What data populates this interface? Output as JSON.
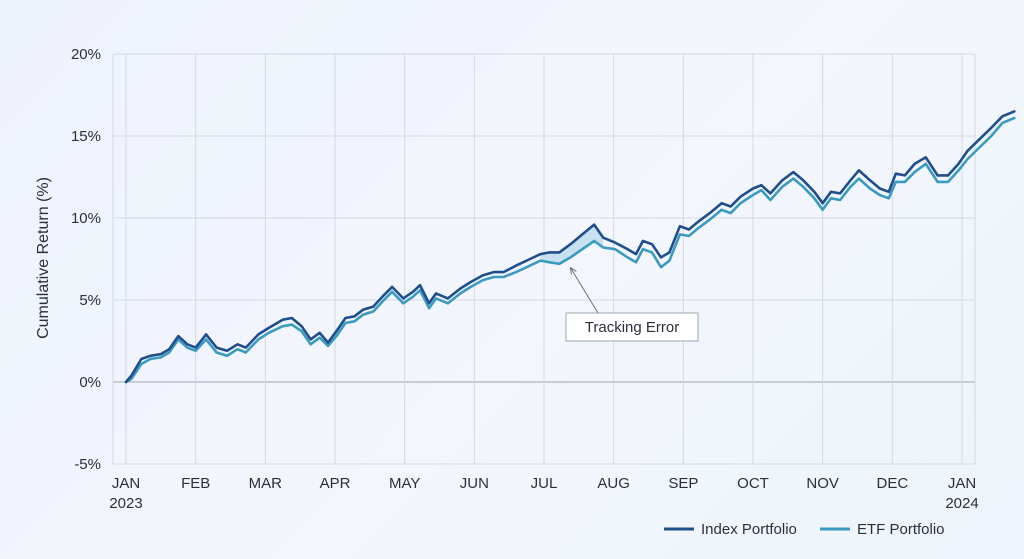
{
  "chart_data": {
    "type": "line",
    "title": "",
    "xlabel": "",
    "ylabel": "Cumulative Return (%)",
    "ylim": [
      -5,
      20
    ],
    "yticks": [
      -5,
      0,
      5,
      10,
      15,
      20
    ],
    "ytick_labels": [
      "-5%",
      "0%",
      "5%",
      "10%",
      "15%",
      "20%"
    ],
    "x_ticks": [
      {
        "label": "JAN",
        "sub": "2023",
        "x": 0
      },
      {
        "label": "FEB",
        "sub": "",
        "x": 1
      },
      {
        "label": "MAR",
        "sub": "",
        "x": 2
      },
      {
        "label": "APR",
        "sub": "",
        "x": 3
      },
      {
        "label": "MAY",
        "sub": "",
        "x": 4
      },
      {
        "label": "JUN",
        "sub": "",
        "x": 5
      },
      {
        "label": "JUL",
        "sub": "",
        "x": 6
      },
      {
        "label": "AUG",
        "sub": "",
        "x": 7
      },
      {
        "label": "SEP",
        "sub": "",
        "x": 8
      },
      {
        "label": "OCT",
        "sub": "",
        "x": 9
      },
      {
        "label": "NOV",
        "sub": "",
        "x": 10
      },
      {
        "label": "DEC",
        "sub": "",
        "x": 11
      },
      {
        "label": "JAN",
        "sub": "2024",
        "x": 12
      }
    ],
    "grid": true,
    "legend_position": "bottom-right",
    "series": [
      {
        "name": "Index Portfolio",
        "color": "#1f4e8c",
        "points": [
          [
            0,
            0
          ],
          [
            0.08,
            0.4
          ],
          [
            0.22,
            1.4
          ],
          [
            0.35,
            1.6
          ],
          [
            0.5,
            1.7
          ],
          [
            0.62,
            2.0
          ],
          [
            0.75,
            2.8
          ],
          [
            0.88,
            2.3
          ],
          [
            1.0,
            2.1
          ],
          [
            1.15,
            2.9
          ],
          [
            1.3,
            2.1
          ],
          [
            1.45,
            1.9
          ],
          [
            1.6,
            2.3
          ],
          [
            1.72,
            2.1
          ],
          [
            1.9,
            2.9
          ],
          [
            2.05,
            3.3
          ],
          [
            2.25,
            3.8
          ],
          [
            2.38,
            3.9
          ],
          [
            2.52,
            3.4
          ],
          [
            2.65,
            2.6
          ],
          [
            2.78,
            3.0
          ],
          [
            2.9,
            2.4
          ],
          [
            3.02,
            3.1
          ],
          [
            3.15,
            3.9
          ],
          [
            3.28,
            4.0
          ],
          [
            3.4,
            4.4
          ],
          [
            3.55,
            4.6
          ],
          [
            3.68,
            5.2
          ],
          [
            3.82,
            5.8
          ],
          [
            3.98,
            5.1
          ],
          [
            4.12,
            5.5
          ],
          [
            4.22,
            5.9
          ],
          [
            4.35,
            4.8
          ],
          [
            4.45,
            5.4
          ],
          [
            4.62,
            5.1
          ],
          [
            4.8,
            5.7
          ],
          [
            4.95,
            6.1
          ],
          [
            5.12,
            6.5
          ],
          [
            5.28,
            6.7
          ],
          [
            5.42,
            6.7
          ],
          [
            5.6,
            7.1
          ],
          [
            5.8,
            7.5
          ],
          [
            5.95,
            7.8
          ],
          [
            6.08,
            7.9
          ],
          [
            6.22,
            7.9
          ],
          [
            6.38,
            8.4
          ],
          [
            6.55,
            9.0
          ],
          [
            6.72,
            9.6
          ],
          [
            6.85,
            8.8
          ],
          [
            7.02,
            8.5
          ],
          [
            7.2,
            8.1
          ],
          [
            7.32,
            7.8
          ],
          [
            7.42,
            8.6
          ],
          [
            7.55,
            8.4
          ],
          [
            7.68,
            7.6
          ],
          [
            7.8,
            7.9
          ],
          [
            7.95,
            9.5
          ],
          [
            8.08,
            9.3
          ],
          [
            8.22,
            9.8
          ],
          [
            8.38,
            10.3
          ],
          [
            8.55,
            10.9
          ],
          [
            8.68,
            10.7
          ],
          [
            8.82,
            11.3
          ],
          [
            9.0,
            11.8
          ],
          [
            9.12,
            12.0
          ],
          [
            9.25,
            11.5
          ],
          [
            9.42,
            12.3
          ],
          [
            9.58,
            12.8
          ],
          [
            9.72,
            12.3
          ],
          [
            9.88,
            11.6
          ],
          [
            10.0,
            10.9
          ],
          [
            10.12,
            11.6
          ],
          [
            10.25,
            11.5
          ],
          [
            10.4,
            12.3
          ],
          [
            10.52,
            12.9
          ],
          [
            10.68,
            12.3
          ],
          [
            10.82,
            11.8
          ],
          [
            10.95,
            11.6
          ],
          [
            11.05,
            12.7
          ],
          [
            11.18,
            12.6
          ],
          [
            11.32,
            13.3
          ],
          [
            11.48,
            13.7
          ],
          [
            11.65,
            12.6
          ],
          [
            11.8,
            12.6
          ],
          [
            11.95,
            13.3
          ],
          [
            12.08,
            14.1
          ],
          [
            12.25,
            14.8
          ],
          [
            12.42,
            15.5
          ],
          [
            12.58,
            16.2
          ],
          [
            12.75,
            16.5
          ]
        ]
      },
      {
        "name": "ETF Portfolio",
        "color": "#3a9bbf",
        "points": [
          [
            0,
            0
          ],
          [
            0.08,
            0.2
          ],
          [
            0.22,
            1.1
          ],
          [
            0.35,
            1.4
          ],
          [
            0.5,
            1.5
          ],
          [
            0.62,
            1.8
          ],
          [
            0.75,
            2.6
          ],
          [
            0.88,
            2.1
          ],
          [
            1.0,
            1.9
          ],
          [
            1.15,
            2.6
          ],
          [
            1.3,
            1.8
          ],
          [
            1.45,
            1.6
          ],
          [
            1.6,
            2.0
          ],
          [
            1.72,
            1.8
          ],
          [
            1.9,
            2.6
          ],
          [
            2.05,
            3.0
          ],
          [
            2.25,
            3.4
          ],
          [
            2.38,
            3.5
          ],
          [
            2.52,
            3.1
          ],
          [
            2.65,
            2.3
          ],
          [
            2.78,
            2.7
          ],
          [
            2.9,
            2.2
          ],
          [
            3.02,
            2.8
          ],
          [
            3.15,
            3.6
          ],
          [
            3.28,
            3.7
          ],
          [
            3.4,
            4.1
          ],
          [
            3.55,
            4.3
          ],
          [
            3.68,
            4.9
          ],
          [
            3.82,
            5.5
          ],
          [
            3.98,
            4.8
          ],
          [
            4.12,
            5.2
          ],
          [
            4.22,
            5.6
          ],
          [
            4.35,
            4.5
          ],
          [
            4.45,
            5.1
          ],
          [
            4.62,
            4.8
          ],
          [
            4.8,
            5.4
          ],
          [
            4.95,
            5.8
          ],
          [
            5.12,
            6.2
          ],
          [
            5.28,
            6.4
          ],
          [
            5.42,
            6.4
          ],
          [
            5.6,
            6.7
          ],
          [
            5.8,
            7.1
          ],
          [
            5.95,
            7.4
          ],
          [
            6.08,
            7.3
          ],
          [
            6.22,
            7.2
          ],
          [
            6.38,
            7.6
          ],
          [
            6.55,
            8.1
          ],
          [
            6.72,
            8.6
          ],
          [
            6.85,
            8.2
          ],
          [
            7.02,
            8.1
          ],
          [
            7.2,
            7.6
          ],
          [
            7.32,
            7.3
          ],
          [
            7.42,
            8.1
          ],
          [
            7.55,
            7.9
          ],
          [
            7.68,
            7.0
          ],
          [
            7.8,
            7.4
          ],
          [
            7.95,
            9.0
          ],
          [
            8.08,
            8.9
          ],
          [
            8.22,
            9.4
          ],
          [
            8.38,
            9.9
          ],
          [
            8.55,
            10.5
          ],
          [
            8.68,
            10.3
          ],
          [
            8.82,
            10.9
          ],
          [
            9.0,
            11.4
          ],
          [
            9.12,
            11.7
          ],
          [
            9.25,
            11.1
          ],
          [
            9.42,
            11.9
          ],
          [
            9.58,
            12.4
          ],
          [
            9.72,
            11.9
          ],
          [
            9.88,
            11.2
          ],
          [
            10.0,
            10.5
          ],
          [
            10.12,
            11.2
          ],
          [
            10.25,
            11.1
          ],
          [
            10.4,
            11.9
          ],
          [
            10.52,
            12.4
          ],
          [
            10.68,
            11.8
          ],
          [
            10.82,
            11.4
          ],
          [
            10.95,
            11.2
          ],
          [
            11.05,
            12.2
          ],
          [
            11.18,
            12.2
          ],
          [
            11.32,
            12.8
          ],
          [
            11.48,
            13.3
          ],
          [
            11.65,
            12.2
          ],
          [
            11.8,
            12.2
          ],
          [
            11.95,
            12.9
          ],
          [
            12.08,
            13.6
          ],
          [
            12.25,
            14.3
          ],
          [
            12.42,
            15.0
          ],
          [
            12.58,
            15.8
          ],
          [
            12.75,
            16.1
          ]
        ]
      }
    ],
    "annotations": [
      {
        "text": "Tracking Error",
        "target": [
          6.35,
          7.35
        ],
        "highlight_range": [
          5.95,
          7.0
        ]
      }
    ]
  }
}
